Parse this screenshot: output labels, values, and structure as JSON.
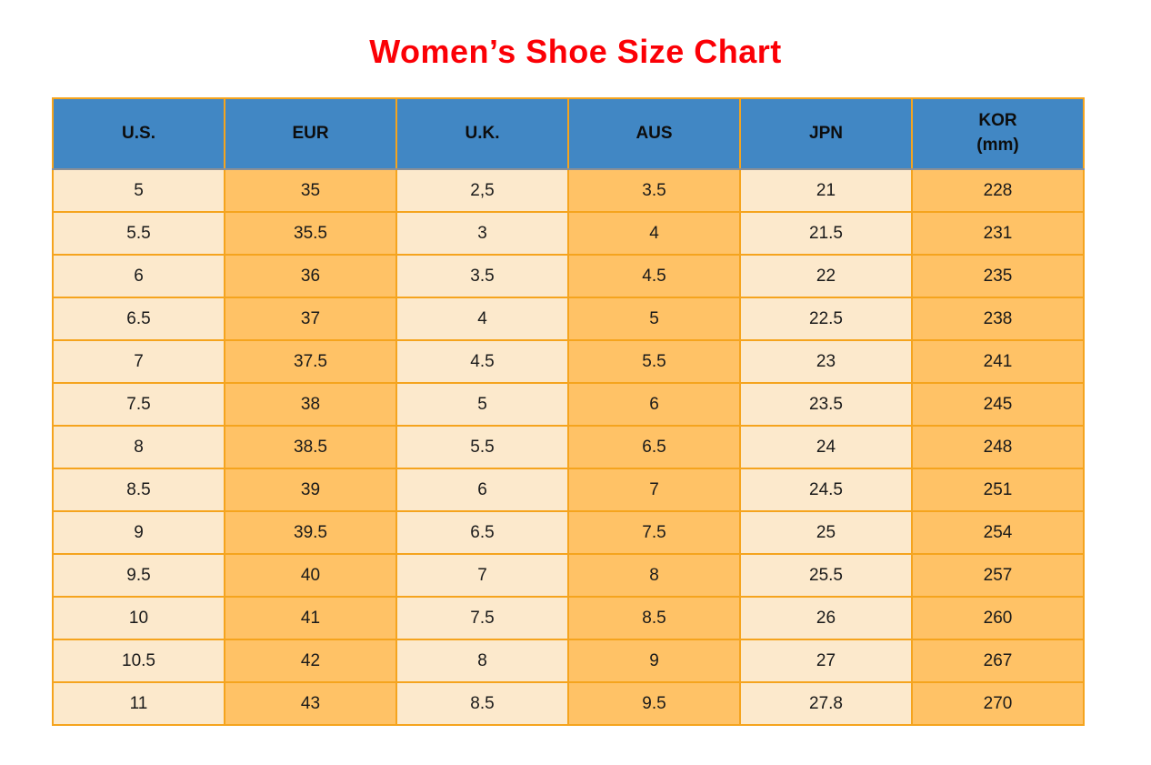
{
  "title": "Women’s Shoe Size Chart",
  "colors": {
    "title_text": "#fb0006",
    "header_bg": "#4187c4",
    "row_light": "#fce9cc",
    "row_orange": "#ffc266",
    "border": "#f5a41e",
    "cell_text": "#1a1a1a"
  },
  "table": {
    "headers": [
      {
        "label": "U.S.",
        "sub": ""
      },
      {
        "label": "EUR",
        "sub": ""
      },
      {
        "label": "U.K.",
        "sub": ""
      },
      {
        "label": "AUS",
        "sub": ""
      },
      {
        "label": "JPN",
        "sub": ""
      },
      {
        "label": "KOR",
        "sub": "(mm)"
      }
    ],
    "rows": [
      [
        "5",
        "35",
        "2,5",
        "3.5",
        "21",
        "228"
      ],
      [
        "5.5",
        "35.5",
        "3",
        "4",
        "21.5",
        "231"
      ],
      [
        "6",
        "36",
        "3.5",
        "4.5",
        "22",
        "235"
      ],
      [
        "6.5",
        "37",
        "4",
        "5",
        "22.5",
        "238"
      ],
      [
        "7",
        "37.5",
        "4.5",
        "5.5",
        "23",
        "241"
      ],
      [
        "7.5",
        "38",
        "5",
        "6",
        "23.5",
        "245"
      ],
      [
        "8",
        "38.5",
        "5.5",
        "6.5",
        "24",
        "248"
      ],
      [
        "8.5",
        "39",
        "6",
        "7",
        "24.5",
        "251"
      ],
      [
        "9",
        "39.5",
        "6.5",
        "7.5",
        "25",
        "254"
      ],
      [
        "9.5",
        "40",
        "7",
        "8",
        "25.5",
        "257"
      ],
      [
        "10",
        "41",
        "7.5",
        "8.5",
        "26",
        "260"
      ],
      [
        "10.5",
        "42",
        "8",
        "9",
        "27",
        "267"
      ],
      [
        "11",
        "43",
        "8.5",
        "9.5",
        "27.8",
        "270"
      ]
    ]
  },
  "chart_data": {
    "type": "table",
    "title": "Women’s Shoe Size Chart",
    "columns": [
      "U.S.",
      "EUR",
      "U.K.",
      "AUS",
      "JPN",
      "KOR (mm)"
    ],
    "rows": [
      [
        "5",
        "35",
        "2,5",
        "3.5",
        "21",
        "228"
      ],
      [
        "5.5",
        "35.5",
        "3",
        "4",
        "21.5",
        "231"
      ],
      [
        "6",
        "36",
        "3.5",
        "4.5",
        "22",
        "235"
      ],
      [
        "6.5",
        "37",
        "4",
        "5",
        "22.5",
        "238"
      ],
      [
        "7",
        "37.5",
        "4.5",
        "5.5",
        "23",
        "241"
      ],
      [
        "7.5",
        "38",
        "5",
        "6",
        "23.5",
        "245"
      ],
      [
        "8",
        "38.5",
        "5.5",
        "6.5",
        "24",
        "248"
      ],
      [
        "8.5",
        "39",
        "6",
        "7",
        "24.5",
        "251"
      ],
      [
        "9",
        "39.5",
        "6.5",
        "7.5",
        "25",
        "254"
      ],
      [
        "9.5",
        "40",
        "7",
        "8",
        "25.5",
        "257"
      ],
      [
        "10",
        "41",
        "7.5",
        "8.5",
        "26",
        "260"
      ],
      [
        "10.5",
        "42",
        "8",
        "9",
        "27",
        "267"
      ],
      [
        "11",
        "43",
        "8.5",
        "9.5",
        "27.8",
        "270"
      ]
    ],
    "layout": {
      "column_striping": "alternating light/orange by column",
      "grid": true
    }
  }
}
